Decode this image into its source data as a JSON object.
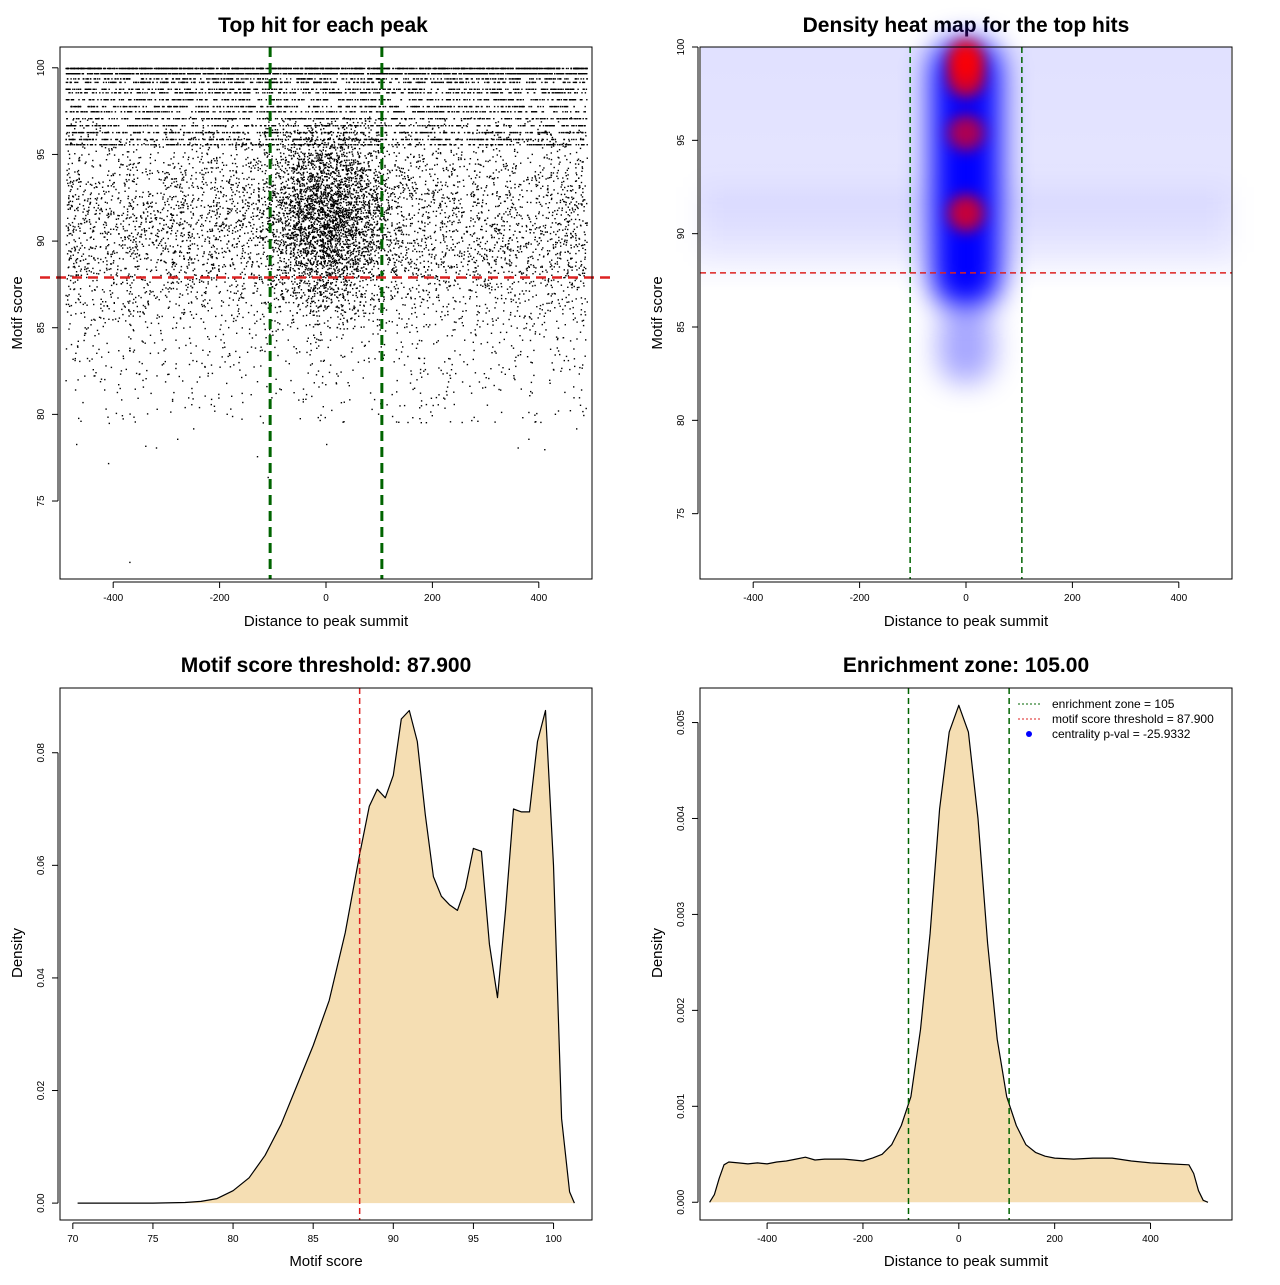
{
  "chart_data": [
    {
      "type": "scatter",
      "title": "Top hit for each peak",
      "xlabel": "Distance to peak summit",
      "ylabel": "Motif score",
      "xlim": [
        -500,
        500
      ],
      "ylim": [
        70.5,
        101.2
      ],
      "xticks": [
        -400,
        -200,
        0,
        200,
        400
      ],
      "yticks": [
        75,
        80,
        85,
        90,
        95,
        100
      ],
      "threshold_line": {
        "y": 87.9,
        "color": "#dd2222"
      },
      "zone_lines": {
        "x": [
          -105,
          105
        ],
        "color": "#006400"
      },
      "score_levels": [
        100,
        99.7,
        99.4,
        99.2,
        98.8,
        98.6,
        98.2,
        97.8,
        97.5,
        97.1,
        96.7,
        96.3,
        95.9,
        95.6
      ],
      "outliers": [
        {
          "x": -370,
          "y": 71.5
        },
        {
          "x": -410,
          "y": 77.2
        },
        {
          "x": -470,
          "y": 78.3
        },
        {
          "x": -340,
          "y": 78.2
        },
        {
          "x": -320,
          "y": 78.1
        },
        {
          "x": -280,
          "y": 78.6
        },
        {
          "x": 360,
          "y": 78.1
        },
        {
          "x": 410,
          "y": 78.0
        },
        {
          "x": 470,
          "y": 79.2
        },
        {
          "x": -130,
          "y": 77.6
        },
        {
          "x": -110,
          "y": 76.4
        },
        {
          "x": 0,
          "y": 78.3
        },
        {
          "x": 380,
          "y": 78.6
        },
        {
          "x": -250,
          "y": 79.2
        }
      ],
      "point_color": "#000000"
    },
    {
      "type": "heatmap",
      "title": "Density heat map for the top hits",
      "xlabel": "Distance to peak summit",
      "ylabel": "Motif score",
      "xlim": [
        -500,
        500
      ],
      "ylim": [
        71.5,
        100
      ],
      "xticks": [
        -400,
        -200,
        0,
        200,
        400
      ],
      "yticks": [
        75,
        80,
        85,
        90,
        95,
        100
      ],
      "threshold_line": {
        "y": 87.9,
        "color": "#dd2222"
      },
      "zone_lines": {
        "x": [
          -105,
          105
        ],
        "color": "#006400"
      },
      "hotspots": [
        {
          "x": 0,
          "y": 99.3,
          "intensity": 1.0
        },
        {
          "x": 0,
          "y": 98.3,
          "intensity": 0.75
        },
        {
          "x": 0,
          "y": 95.4,
          "intensity": 0.55
        },
        {
          "x": 0,
          "y": 91.1,
          "intensity": 0.7
        }
      ],
      "colors": [
        "#ffffff",
        "#0000ff",
        "#ff0000"
      ]
    },
    {
      "type": "area",
      "title": "Motif score threshold: 87.900",
      "xlabel": "Motif score",
      "ylabel": "Density",
      "xlim": [
        69.2,
        102.4
      ],
      "ylim": [
        -0.003,
        0.0915
      ],
      "xticks": [
        70,
        75,
        80,
        85,
        90,
        95,
        100
      ],
      "yticks": [
        0.0,
        0.02,
        0.04,
        0.06,
        0.08
      ],
      "ytick_labels": [
        "0.00",
        "0.02",
        "0.04",
        "0.06",
        "0.08"
      ],
      "x": [
        70.3,
        75,
        77,
        78,
        79,
        80,
        81,
        82,
        83,
        84,
        85,
        86,
        87,
        87.9,
        88.5,
        89,
        89.5,
        90,
        90.5,
        91,
        91.5,
        92,
        92.5,
        93,
        93.5,
        94,
        94.5,
        95,
        95.5,
        96,
        96.5,
        97,
        97.5,
        98,
        98.5,
        99,
        99.5,
        100,
        100.5,
        101,
        101.3
      ],
      "y": [
        0.0,
        0.0,
        0.0001,
        0.0003,
        0.0008,
        0.0022,
        0.0045,
        0.0085,
        0.014,
        0.021,
        0.028,
        0.036,
        0.048,
        0.062,
        0.0705,
        0.0735,
        0.072,
        0.076,
        0.086,
        0.0875,
        0.082,
        0.069,
        0.058,
        0.0545,
        0.053,
        0.052,
        0.056,
        0.063,
        0.0625,
        0.046,
        0.0365,
        0.052,
        0.07,
        0.0695,
        0.0695,
        0.082,
        0.0875,
        0.06,
        0.015,
        0.002,
        0.0
      ],
      "fill": "#f5deb3",
      "threshold_line": {
        "x": 87.9,
        "color": "#dd2222"
      }
    },
    {
      "type": "area",
      "title": "Enrichment zone: 105.00",
      "xlabel": "Distance to peak summit",
      "ylabel": "Density",
      "xlim": [
        -540,
        570
      ],
      "ylim": [
        -0.000185,
        0.00536
      ],
      "xticks": [
        -400,
        -200,
        0,
        200,
        400
      ],
      "yticks": [
        0.0,
        0.001,
        0.002,
        0.003,
        0.004,
        0.005
      ],
      "ytick_labels": [
        "0.000",
        "0.001",
        "0.002",
        "0.003",
        "0.004",
        "0.005"
      ],
      "x": [
        -520,
        -510,
        -500,
        -490,
        -480,
        -460,
        -440,
        -420,
        -400,
        -380,
        -360,
        -340,
        -320,
        -300,
        -280,
        -260,
        -240,
        -220,
        -200,
        -180,
        -160,
        -140,
        -120,
        -100,
        -80,
        -60,
        -40,
        -20,
        0,
        20,
        40,
        60,
        80,
        100,
        120,
        140,
        160,
        180,
        200,
        240,
        280,
        320,
        360,
        400,
        440,
        480,
        490,
        500,
        510,
        520
      ],
      "y": [
        0.0,
        8e-05,
        0.00025,
        0.00039,
        0.00042,
        0.00041,
        0.0004,
        0.00041,
        0.0004,
        0.00042,
        0.00043,
        0.00045,
        0.00047,
        0.00044,
        0.00045,
        0.00045,
        0.00045,
        0.00044,
        0.00043,
        0.00046,
        0.0005,
        0.0006,
        0.0008,
        0.0011,
        0.0018,
        0.0028,
        0.0041,
        0.0049,
        0.00518,
        0.0049,
        0.004,
        0.0027,
        0.0017,
        0.0011,
        0.0008,
        0.0006,
        0.00052,
        0.00048,
        0.00046,
        0.00045,
        0.00046,
        0.00046,
        0.00043,
        0.00041,
        0.0004,
        0.00039,
        0.0003,
        0.00012,
        2e-05,
        0.0
      ],
      "fill": "#f5deb3",
      "zone_lines": {
        "x": [
          -105,
          105
        ],
        "color": "#006400"
      },
      "legend": {
        "position": "top-right",
        "entries": [
          {
            "label": "enrichment zone = 105",
            "color": "#006400",
            "style": "dotted-line"
          },
          {
            "label": "motif score threshold = 87.900",
            "color": "#dd2222",
            "style": "dotted-line"
          },
          {
            "label": "centrality p-val = -25.9332",
            "color": "#0000ff",
            "style": "point"
          }
        ]
      }
    }
  ]
}
